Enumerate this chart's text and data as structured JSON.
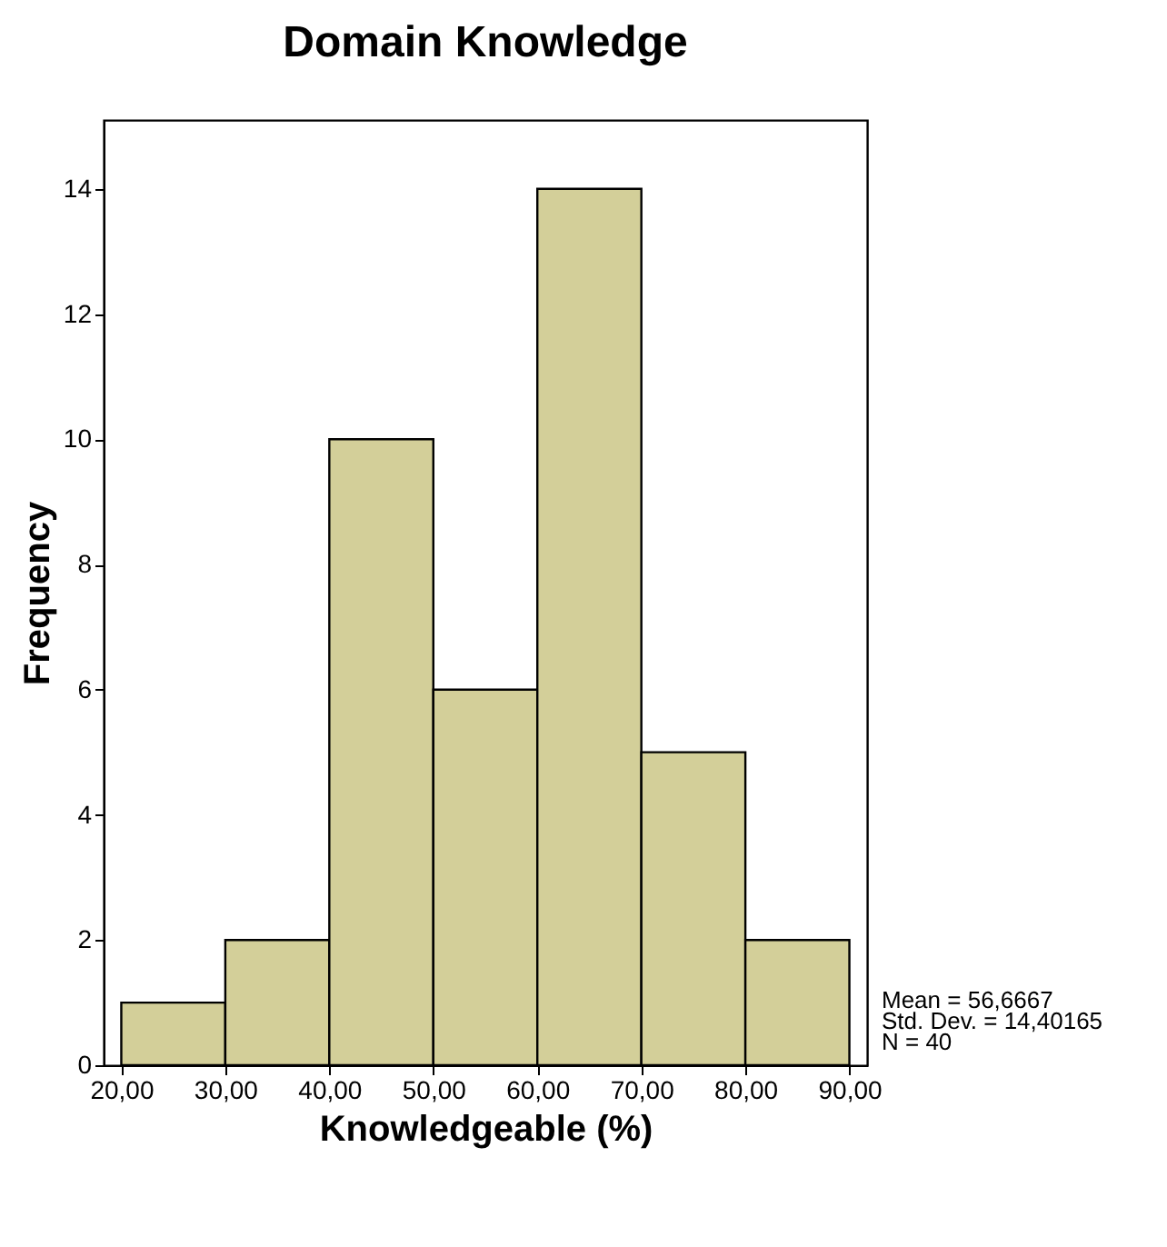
{
  "chart_data": {
    "type": "histogram",
    "title": "Domain Knowledge",
    "xlabel": "Knowledgeable (%)",
    "ylabel": "Frequency",
    "bins": [
      20,
      30,
      40,
      50,
      60,
      70,
      80,
      90
    ],
    "values": [
      1,
      2,
      10,
      6,
      14,
      5,
      2
    ],
    "color": "#d3cf99",
    "xlim": [
      18.3,
      91.7
    ],
    "ylim": [
      0,
      15.1
    ],
    "xticks": [
      {
        "value": 20,
        "label": "20,00"
      },
      {
        "value": 30,
        "label": "30,00"
      },
      {
        "value": 40,
        "label": "40,00"
      },
      {
        "value": 50,
        "label": "50,00"
      },
      {
        "value": 60,
        "label": "60,00"
      },
      {
        "value": 70,
        "label": "70,00"
      },
      {
        "value": 80,
        "label": "80,00"
      },
      {
        "value": 90,
        "label": "90,00"
      }
    ],
    "yticks": [
      0,
      2,
      4,
      6,
      8,
      10,
      12,
      14
    ],
    "grid": false,
    "annotations": [
      "Mean = 56,6667",
      "Std. Dev. = 14,40165",
      "N = 40"
    ]
  }
}
